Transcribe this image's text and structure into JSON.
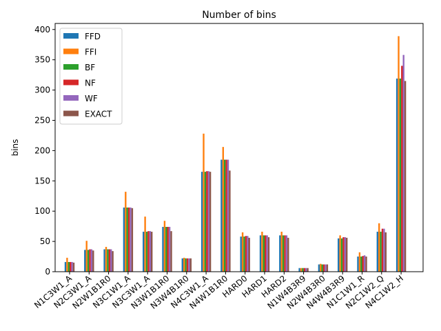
{
  "chart_data": {
    "type": "bar",
    "title": "Number of bins",
    "xlabel": "",
    "ylabel": "bins",
    "ylim": [
      0,
      410
    ],
    "yticks": [
      0,
      50,
      100,
      150,
      200,
      250,
      300,
      350,
      400
    ],
    "legend_position": "top-left",
    "grid": false,
    "categories": [
      "N1C3W1_A",
      "N2C3W1_A",
      "N2W1B1R0",
      "N3C1W1_A",
      "N3C3W1_A",
      "N3W1B1R0",
      "N3W4B1R0",
      "N4C3W1_A",
      "N4W1B1R0",
      "HARD0",
      "HARD1",
      "HARD2",
      "N1W4B3R9",
      "N2W4B3R0",
      "N4W4B3R9",
      "N1C1W1_R",
      "N2C1W2_Q",
      "N4C1W2_H"
    ],
    "series": [
      {
        "name": "FFD",
        "color": "#1f77b4",
        "values": [
          16,
          36,
          37,
          106,
          66,
          74,
          22,
          165,
          185,
          58,
          60,
          60,
          6,
          12,
          55,
          25,
          66,
          319
        ]
      },
      {
        "name": "FFI",
        "color": "#ff7f0e",
        "values": [
          23,
          51,
          41,
          132,
          91,
          84,
          23,
          228,
          206,
          65,
          66,
          66,
          6,
          13,
          60,
          32,
          80,
          389
        ]
      },
      {
        "name": "BF",
        "color": "#2ca02c",
        "values": [
          16,
          36,
          37,
          106,
          66,
          74,
          22,
          165,
          185,
          58,
          60,
          60,
          6,
          12,
          55,
          25,
          66,
          319
        ]
      },
      {
        "name": "NF",
        "color": "#d62728",
        "values": [
          16,
          37,
          37,
          106,
          67,
          74,
          22,
          166,
          185,
          59,
          60,
          60,
          6,
          12,
          57,
          26,
          71,
          340
        ]
      },
      {
        "name": "WF",
        "color": "#9467bd",
        "values": [
          16,
          37,
          37,
          106,
          67,
          74,
          22,
          166,
          185,
          59,
          60,
          60,
          6,
          12,
          57,
          27,
          71,
          358
        ]
      },
      {
        "name": "EXACT",
        "color": "#8c564b",
        "values": [
          15,
          35,
          34,
          105,
          66,
          67,
          22,
          165,
          167,
          56,
          57,
          56,
          6,
          12,
          56,
          25,
          65,
          315
        ]
      }
    ]
  }
}
